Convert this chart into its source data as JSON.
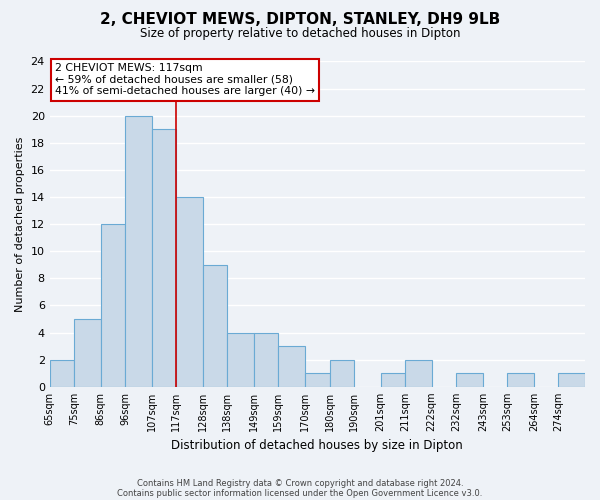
{
  "title": "2, CHEVIOT MEWS, DIPTON, STANLEY, DH9 9LB",
  "subtitle": "Size of property relative to detached houses in Dipton",
  "xlabel": "Distribution of detached houses by size in Dipton",
  "ylabel": "Number of detached properties",
  "bin_edges": [
    65,
    75,
    86,
    96,
    107,
    117,
    128,
    138,
    149,
    159,
    170,
    180,
    190,
    201,
    211,
    222,
    232,
    243,
    253,
    264,
    274,
    285
  ],
  "bin_labels": [
    "65sqm",
    "75sqm",
    "86sqm",
    "96sqm",
    "107sqm",
    "117sqm",
    "128sqm",
    "138sqm",
    "149sqm",
    "159sqm",
    "170sqm",
    "180sqm",
    "190sqm",
    "201sqm",
    "211sqm",
    "222sqm",
    "232sqm",
    "243sqm",
    "253sqm",
    "264sqm",
    "274sqm"
  ],
  "counts": [
    2,
    5,
    12,
    20,
    19,
    14,
    9,
    4,
    4,
    3,
    1,
    2,
    0,
    1,
    2,
    0,
    1,
    0,
    1,
    0,
    1
  ],
  "bar_color": "#c9d9e8",
  "bar_edge_color": "#6aaad4",
  "vline_x": 117,
  "vline_color": "#cc0000",
  "ylim": [
    0,
    24
  ],
  "yticks": [
    0,
    2,
    4,
    6,
    8,
    10,
    12,
    14,
    16,
    18,
    20,
    22,
    24
  ],
  "annotation_text": "2 CHEVIOT MEWS: 117sqm\n← 59% of detached houses are smaller (58)\n41% of semi-detached houses are larger (40) →",
  "annotation_box_facecolor": "#ffffff",
  "annotation_box_edgecolor": "#cc0000",
  "footer_line1": "Contains HM Land Registry data © Crown copyright and database right 2024.",
  "footer_line2": "Contains public sector information licensed under the Open Government Licence v3.0.",
  "background_color": "#eef2f7",
  "grid_color": "#ffffff",
  "spine_color": "#aaaaaa"
}
